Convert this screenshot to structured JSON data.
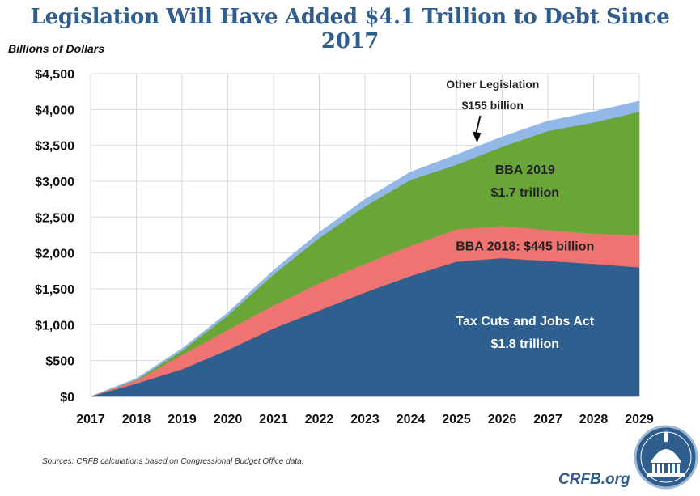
{
  "chart_data": {
    "type": "area",
    "title": "Legislation Will Have Added $4.1 Trillion to Debt Since 2017",
    "ylabel": "Billions of Dollars",
    "xlabel": "",
    "ylim": [
      0,
      4500
    ],
    "yticks": [
      0,
      500,
      1000,
      1500,
      2000,
      2500,
      3000,
      3500,
      4000,
      4500
    ],
    "ytick_labels": [
      "$0",
      "$500",
      "$1,000",
      "$1,500",
      "$2,000",
      "$2,500",
      "$3,000",
      "$3,500",
      "$4,000",
      "$4,500"
    ],
    "x": [
      "2017",
      "2018",
      "2019",
      "2020",
      "2021",
      "2022",
      "2023",
      "2024",
      "2025",
      "2026",
      "2027",
      "2028",
      "2029"
    ],
    "stacked": true,
    "grid": true,
    "legend": "none",
    "series": [
      {
        "name": "Tax Cuts and Jobs Act",
        "color": "#2f5f8f",
        "values": [
          0,
          180,
          380,
          650,
          950,
          1200,
          1450,
          1680,
          1880,
          1930,
          1890,
          1850,
          1800
        ]
      },
      {
        "name": "BBA 2018",
        "color": "#ef7371",
        "values": [
          0,
          40,
          200,
          280,
          320,
          380,
          400,
          420,
          450,
          450,
          430,
          420,
          450
        ]
      },
      {
        "name": "BBA 2019",
        "color": "#6aa637",
        "values": [
          0,
          10,
          60,
          200,
          430,
          630,
          800,
          920,
          900,
          1100,
          1380,
          1550,
          1720
        ]
      },
      {
        "name": "Other Legislation",
        "color": "#92b8e8",
        "values": [
          0,
          20,
          30,
          40,
          60,
          80,
          100,
          110,
          140,
          140,
          140,
          150,
          150
        ]
      }
    ],
    "annotations": [
      {
        "id": "other",
        "lines": [
          "Other Legislation",
          "$155 billion"
        ],
        "color": "#222222"
      },
      {
        "id": "bba2019",
        "lines": [
          "BBA 2019",
          "$1.7 trillion"
        ],
        "color": "#222222"
      },
      {
        "id": "bba2018",
        "lines": [
          "BBA 2018: $445 billion"
        ],
        "color": "#222222"
      },
      {
        "id": "tcja",
        "lines": [
          "Tax Cuts and Jobs Act",
          "$1.8 trillion"
        ],
        "color": "#ffffff"
      }
    ]
  },
  "footer": {
    "source": "Sources: CRFB calculations based on Congressional Budget Office data.",
    "brand": "CRFB.org"
  }
}
